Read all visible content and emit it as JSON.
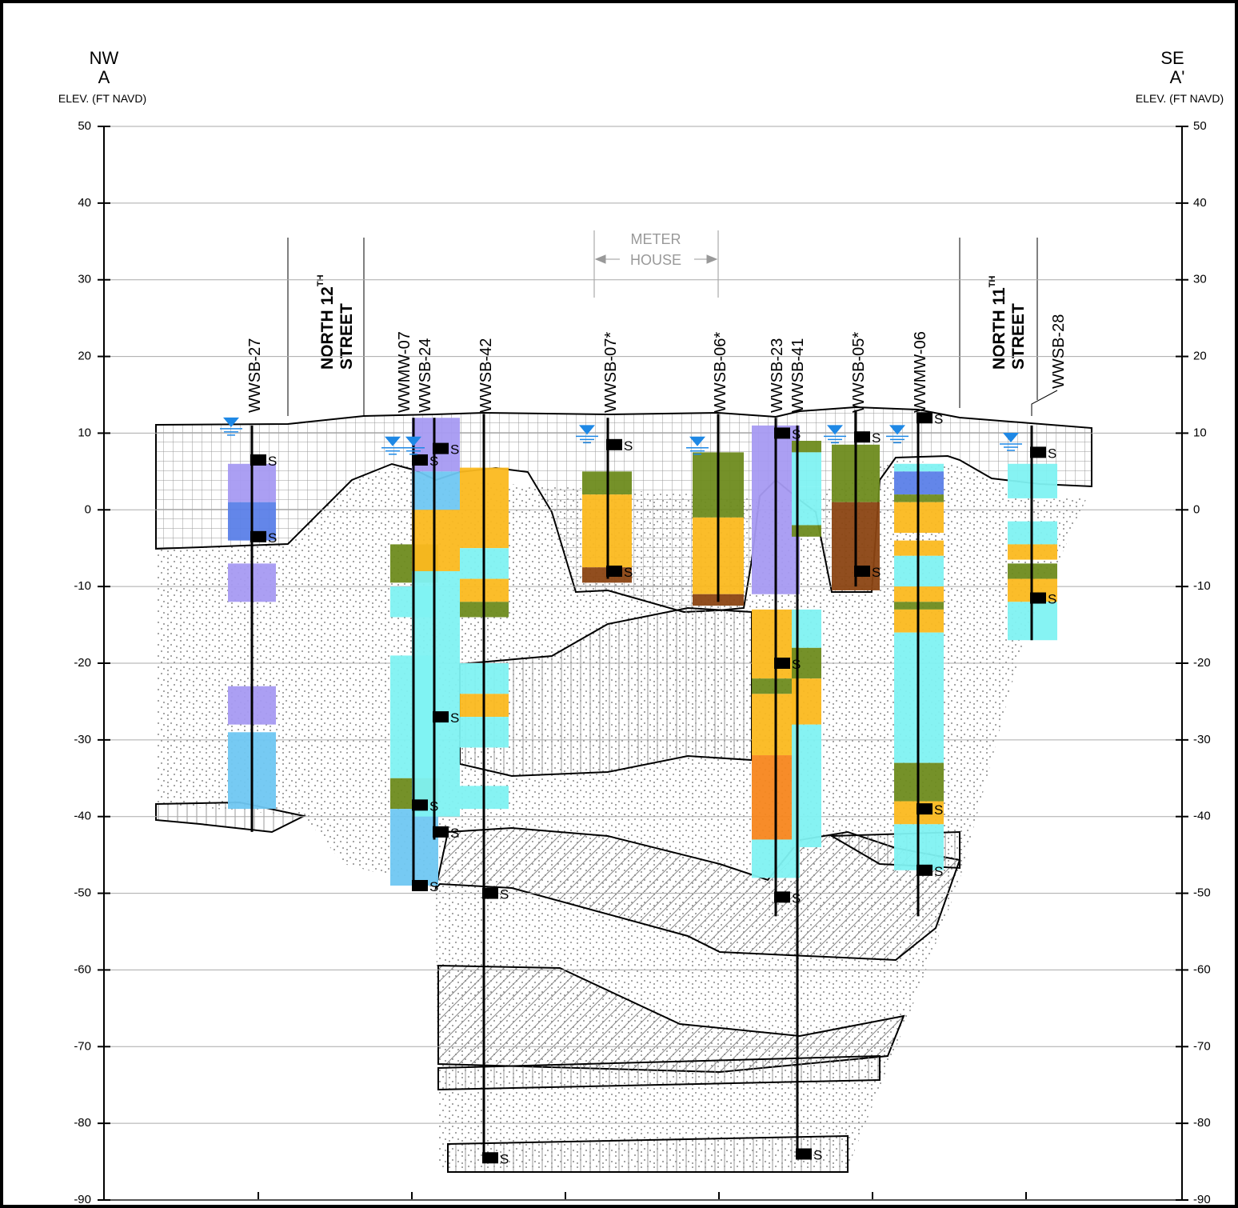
{
  "header": {
    "left_direction": "NW",
    "left_section": "A",
    "left_axis_label": "ELEV. (FT NAVD)",
    "right_direction": "SE",
    "right_section": "A'",
    "right_axis_label": "ELEV. (FT NAVD)"
  },
  "elevation_axis": {
    "range": [
      -90,
      50
    ],
    "ticks": [
      50,
      40,
      30,
      20,
      10,
      0,
      -10,
      -20,
      -30,
      -40,
      -50,
      -60,
      -70,
      -80,
      -90
    ]
  },
  "streets": [
    {
      "line1": "NORTH 12",
      "superscript": "TH",
      "line2": "STREET"
    },
    {
      "line1": "NORTH 11",
      "superscript": "TH",
      "line2": "STREET"
    }
  ],
  "structure": {
    "line1": "METER",
    "line2": "HOUSE"
  },
  "sample_marker": "S",
  "borings": [
    {
      "name": "WWSB-27",
      "top": 11,
      "bottom": -42,
      "water_level": 11,
      "samples": [
        6.5,
        -3.5
      ],
      "intervals": [
        {
          "top": 6,
          "bottom": 1,
          "color": "#a79af2"
        },
        {
          "top": 1,
          "bottom": -4,
          "color": "#5b7fe8"
        },
        {
          "top": -7,
          "bottom": -12,
          "color": "#a79af2"
        },
        {
          "top": -23,
          "bottom": -28,
          "color": "#a79af2"
        },
        {
          "top": -29,
          "bottom": -39,
          "color": "#6fc7f2"
        }
      ]
    },
    {
      "name": "WWMW-07",
      "top": 12,
      "bottom": -49,
      "water_level": 8.5,
      "samples": [
        6.5,
        -38.5,
        -49
      ],
      "intervals": [
        {
          "top": -4.5,
          "bottom": -9.5,
          "color": "#6e8b1e"
        },
        {
          "top": -10,
          "bottom": -14,
          "color": "#7ff2f2"
        },
        {
          "top": -19,
          "bottom": -35,
          "color": "#7ff2f2"
        },
        {
          "top": -35,
          "bottom": -39,
          "color": "#6e8b1e"
        },
        {
          "top": -39,
          "bottom": -49,
          "color": "#6fc7f2"
        }
      ]
    },
    {
      "name": "WWSB-24",
      "top": 12,
      "bottom": -43,
      "water_level": 8.5,
      "samples": [
        8,
        -27,
        -42
      ],
      "intervals": [
        {
          "top": 12,
          "bottom": 5,
          "color": "#a79af2"
        },
        {
          "top": 5,
          "bottom": 0,
          "color": "#6fc7f2"
        },
        {
          "top": 0,
          "bottom": -8,
          "color": "#fbb91f"
        },
        {
          "top": -8,
          "bottom": -40,
          "color": "#7ff2f2"
        }
      ]
    },
    {
      "name": "WWSB-42",
      "top": 12.5,
      "bottom": -84.5,
      "water_level": null,
      "samples": [
        -50,
        -84.5
      ],
      "intervals": [
        {
          "top": 5.5,
          "bottom": -5,
          "color": "#fbb91f"
        },
        {
          "top": -5,
          "bottom": -9,
          "color": "#7ff2f2"
        },
        {
          "top": -9,
          "bottom": -12,
          "color": "#fbb91f"
        },
        {
          "top": -12,
          "bottom": -14,
          "color": "#6e8b1e"
        },
        {
          "top": -20,
          "bottom": -24,
          "color": "#7ff2f2"
        },
        {
          "top": -24,
          "bottom": -27,
          "color": "#fbb91f"
        },
        {
          "top": -27,
          "bottom": -31,
          "color": "#7ff2f2"
        },
        {
          "top": -36,
          "bottom": -39,
          "color": "#7ff2f2"
        }
      ]
    },
    {
      "name": "WWSB-07*",
      "top": 12,
      "bottom": -9,
      "water_level": 10,
      "samples": [
        8.5,
        -8
      ],
      "intervals": [
        {
          "top": 5,
          "bottom": 2,
          "color": "#6e8b1e"
        },
        {
          "top": 2,
          "bottom": -7.5,
          "color": "#fbb91f"
        },
        {
          "top": -7.5,
          "bottom": -9.5,
          "color": "#8b4513"
        }
      ]
    },
    {
      "name": "WWSB-06*",
      "top": 12.5,
      "bottom": -12,
      "water_level": 8.5,
      "samples": [],
      "intervals": [
        {
          "top": 7.5,
          "bottom": -1,
          "color": "#6e8b1e"
        },
        {
          "top": -1,
          "bottom": -11,
          "color": "#fbb91f"
        },
        {
          "top": -11,
          "bottom": -12.5,
          "color": "#8b4513"
        }
      ]
    },
    {
      "name": "WWSB-23",
      "top": 12,
      "bottom": -53,
      "water_level": null,
      "samples": [
        10,
        -20,
        -50.5
      ],
      "intervals": [
        {
          "top": 11,
          "bottom": -11,
          "color": "#a79af2"
        },
        {
          "top": -13,
          "bottom": -22,
          "color": "#fbb91f"
        },
        {
          "top": -22,
          "bottom": -24,
          "color": "#6e8b1e"
        },
        {
          "top": -24,
          "bottom": -32,
          "color": "#fbb91f"
        },
        {
          "top": -32,
          "bottom": -43,
          "color": "#f7861e"
        },
        {
          "top": -43,
          "bottom": -48,
          "color": "#7ff2f2"
        }
      ]
    },
    {
      "name": "WWSB-41",
      "top": 11,
      "bottom": -84,
      "water_level": null,
      "samples": [
        -84
      ],
      "intervals": [
        {
          "top": 9,
          "bottom": 7.5,
          "color": "#6e8b1e"
        },
        {
          "top": 7.5,
          "bottom": 3,
          "color": "#7ff2f2"
        },
        {
          "top": 3,
          "bottom": -2,
          "color": "#7ff2f2"
        },
        {
          "top": -2,
          "bottom": -3.5,
          "color": "#6e8b1e"
        },
        {
          "top": -13,
          "bottom": -18,
          "color": "#7ff2f2"
        },
        {
          "top": -18,
          "bottom": -22,
          "color": "#6e8b1e"
        },
        {
          "top": -22,
          "bottom": -28,
          "color": "#fbb91f"
        },
        {
          "top": -28,
          "bottom": -44,
          "color": "#7ff2f2"
        }
      ]
    },
    {
      "name": "WWSB-05*",
      "top": 13,
      "bottom": -10,
      "water_level": 10,
      "samples": [
        9.5,
        -8
      ],
      "intervals": [
        {
          "top": 8.5,
          "bottom": 1,
          "color": "#6e8b1e"
        },
        {
          "top": 1,
          "bottom": -10.5,
          "color": "#8b4513"
        }
      ]
    },
    {
      "name": "WWMW-06",
      "top": 12,
      "bottom": -53,
      "water_level": 10,
      "samples": [
        12,
        -39,
        -47
      ],
      "intervals": [
        {
          "top": 6,
          "bottom": 5,
          "color": "#7ff2f2"
        },
        {
          "top": 5,
          "bottom": 2,
          "color": "#5b7fe8"
        },
        {
          "top": 2,
          "bottom": 1,
          "color": "#6e8b1e"
        },
        {
          "top": 1,
          "bottom": -3,
          "color": "#fbb91f"
        },
        {
          "top": -4,
          "bottom": -6,
          "color": "#fbb91f"
        },
        {
          "top": -6,
          "bottom": -10,
          "color": "#7ff2f2"
        },
        {
          "top": -10,
          "bottom": -12,
          "color": "#fbb91f"
        },
        {
          "top": -12,
          "bottom": -13,
          "color": "#6e8b1e"
        },
        {
          "top": -13,
          "bottom": -16,
          "color": "#fbb91f"
        },
        {
          "top": -16,
          "bottom": -33,
          "color": "#7ff2f2"
        },
        {
          "top": -33,
          "bottom": -38,
          "color": "#6e8b1e"
        },
        {
          "top": -38,
          "bottom": -41,
          "color": "#fbb91f"
        },
        {
          "top": -41,
          "bottom": -47,
          "color": "#7ff2f2"
        }
      ]
    },
    {
      "name": "WWSB-28",
      "top": 11,
      "bottom": -17,
      "water_level": 9,
      "samples": [
        7.5,
        -11.5
      ],
      "intervals": [
        {
          "top": 6,
          "bottom": 1.5,
          "color": "#7ff2f2"
        },
        {
          "top": -1.5,
          "bottom": -4.5,
          "color": "#7ff2f2"
        },
        {
          "top": -4.5,
          "bottom": -6.5,
          "color": "#fbb91f"
        },
        {
          "top": -7,
          "bottom": -9,
          "color": "#6e8b1e"
        },
        {
          "top": -9,
          "bottom": -12,
          "color": "#fbb91f"
        },
        {
          "top": -12,
          "bottom": -17,
          "color": "#7ff2f2"
        }
      ]
    }
  ]
}
